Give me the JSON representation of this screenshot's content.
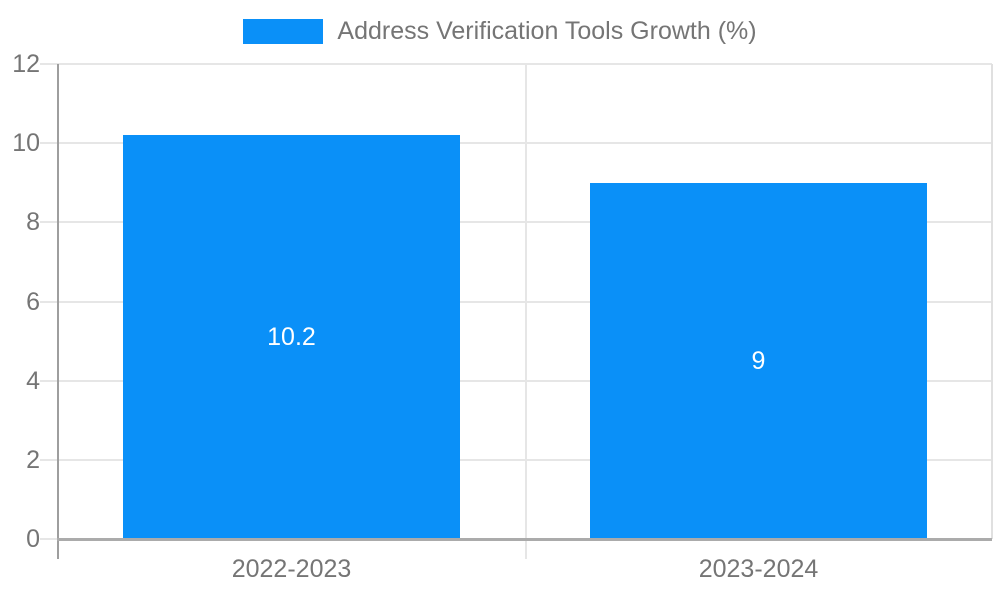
{
  "legend": {
    "label": "Address Verification Tools Growth (%)"
  },
  "colors": {
    "bar": "#0a90f8",
    "text": "#757575",
    "grid": "#e6e6e6",
    "axis": "#9e9e9e",
    "value_label": "#ffffff"
  },
  "chart_data": {
    "type": "bar",
    "categories": [
      "2022-2023",
      "2023-2024"
    ],
    "values": [
      10.2,
      9
    ],
    "value_labels": [
      "10.2",
      "9"
    ],
    "series": [
      {
        "name": "Address Verification Tools Growth (%)",
        "values": [
          10.2,
          9
        ]
      }
    ],
    "title": "",
    "xlabel": "",
    "ylabel": "",
    "ylim": [
      0,
      12
    ],
    "yticks": [
      0,
      2,
      4,
      6,
      8,
      10,
      12
    ],
    "grid": "horizontal",
    "legend_position": "top-center"
  }
}
